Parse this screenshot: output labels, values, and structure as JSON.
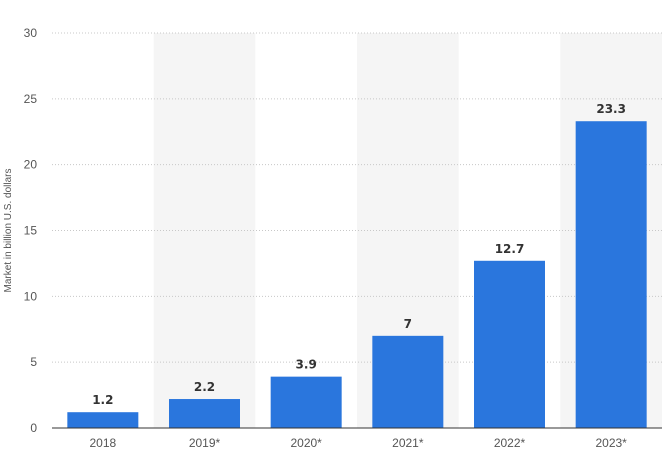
{
  "chart_data": {
    "type": "bar",
    "categories": [
      "2018",
      "2019*",
      "2020*",
      "2021*",
      "2022*",
      "2023*"
    ],
    "values": [
      1.2,
      2.2,
      3.9,
      7,
      12.7,
      23.3
    ],
    "data_labels": [
      "1.2",
      "2.2",
      "3.9",
      "7",
      "12.7",
      "23.3"
    ],
    "ylabel": "Market in billion U.S. dollars",
    "ylim": [
      0,
      30
    ],
    "yticks": [
      0,
      5,
      10,
      15,
      20,
      25,
      30
    ],
    "grid": true,
    "alternating_band_shading": true,
    "colors": {
      "bar": "#2a76dd",
      "band": "#f5f5f5",
      "grid": "#c8c8c8"
    }
  }
}
